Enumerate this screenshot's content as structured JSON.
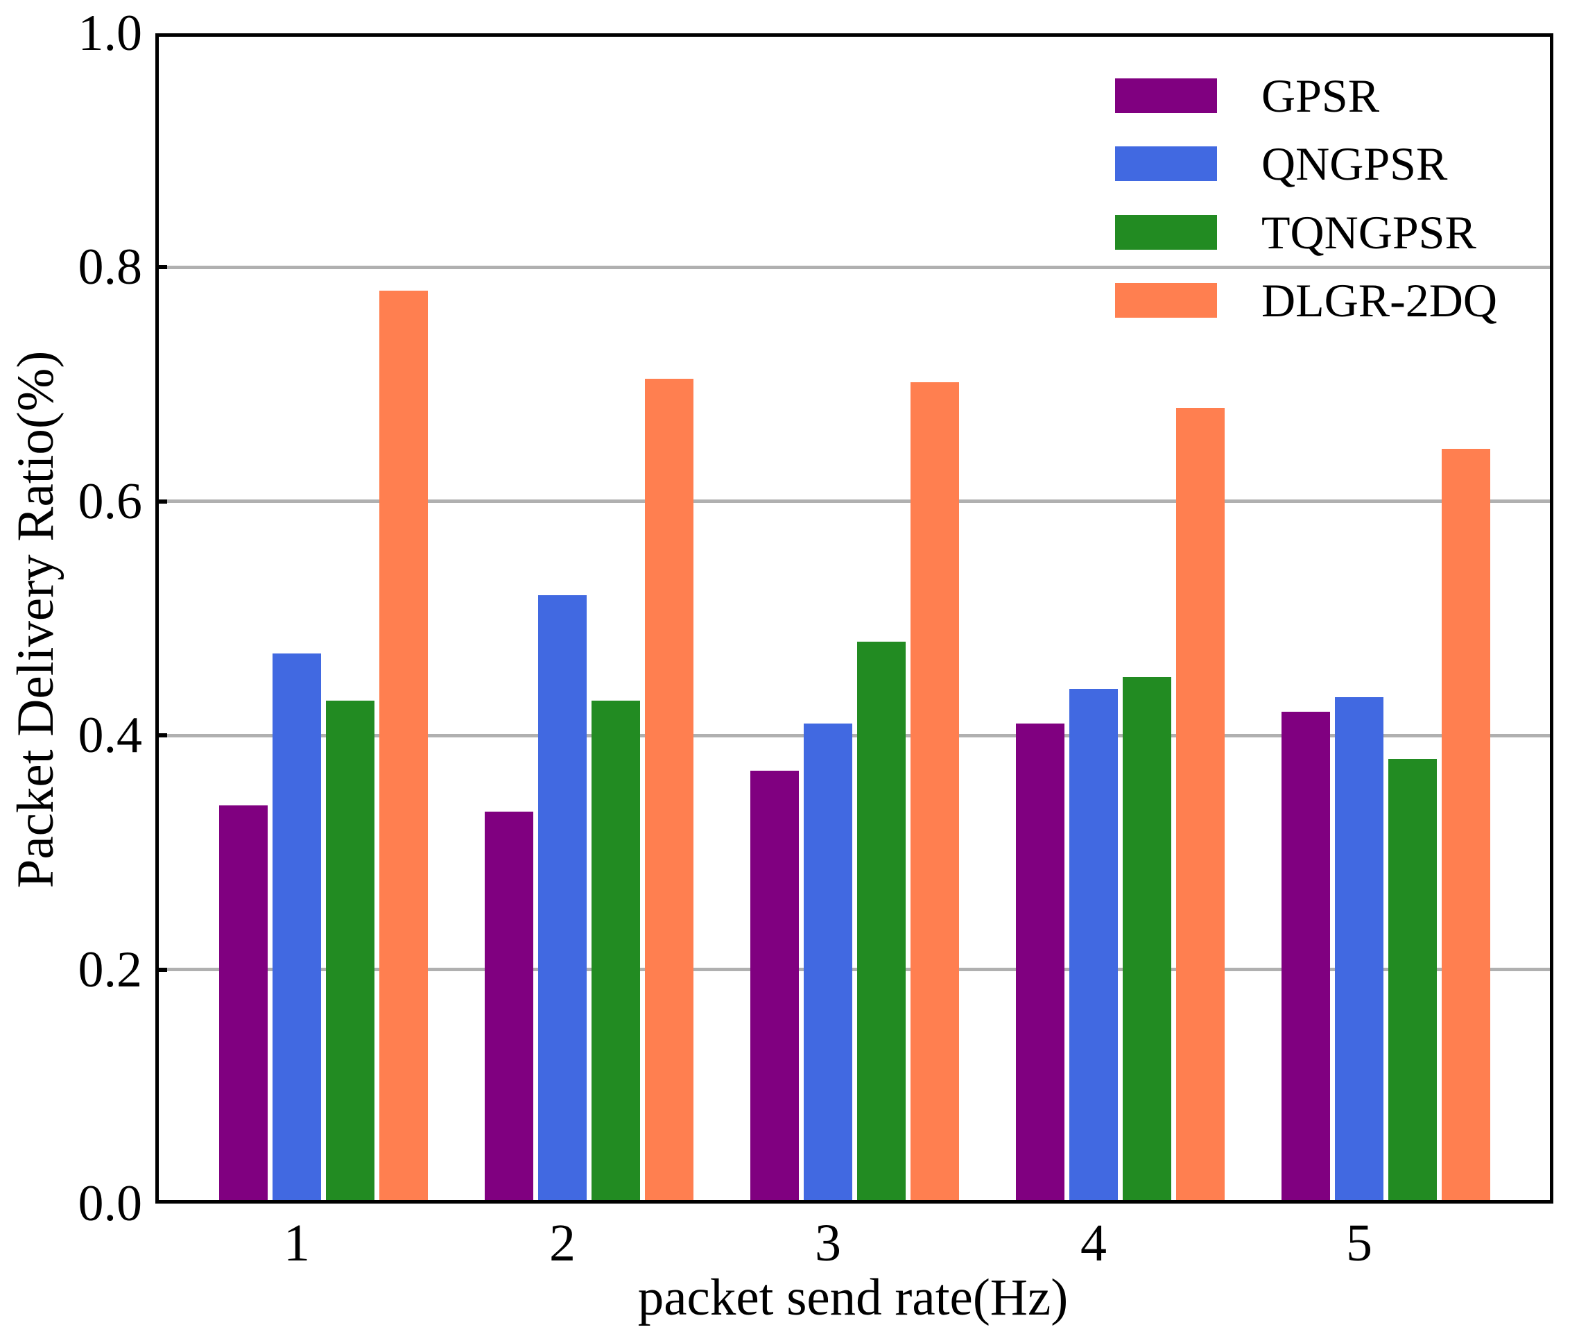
{
  "chart_data": {
    "type": "bar",
    "title": "",
    "xlabel": "packet send rate(Hz)",
    "ylabel": "Packet Delivery Ratio(%)",
    "categories": [
      "1",
      "2",
      "3",
      "4",
      "5"
    ],
    "ylim": [
      0.0,
      1.0
    ],
    "ytick_labels": [
      "0.0",
      "0.2",
      "0.4",
      "0.6",
      "0.8",
      "1.0"
    ],
    "grid": "horizontal",
    "grid_color": "#b0b0b0",
    "axis_color": "#000000",
    "background_color": "#ffffff",
    "legend_position": "upper-right-inside-no-frame",
    "series": [
      {
        "name": "GPSR",
        "color": "#800080",
        "values": [
          0.34,
          0.335,
          0.37,
          0.41,
          0.42
        ]
      },
      {
        "name": "QNGPSR",
        "color": "#4169E1",
        "values": [
          0.47,
          0.52,
          0.41,
          0.44,
          0.433
        ]
      },
      {
        "name": "TQNGPSR",
        "color": "#228B22",
        "values": [
          0.43,
          0.43,
          0.48,
          0.45,
          0.38
        ]
      },
      {
        "name": "DLGR-2DQ",
        "color": "#FF7F50",
        "values": [
          0.78,
          0.705,
          0.702,
          0.68,
          0.645
        ]
      }
    ]
  }
}
